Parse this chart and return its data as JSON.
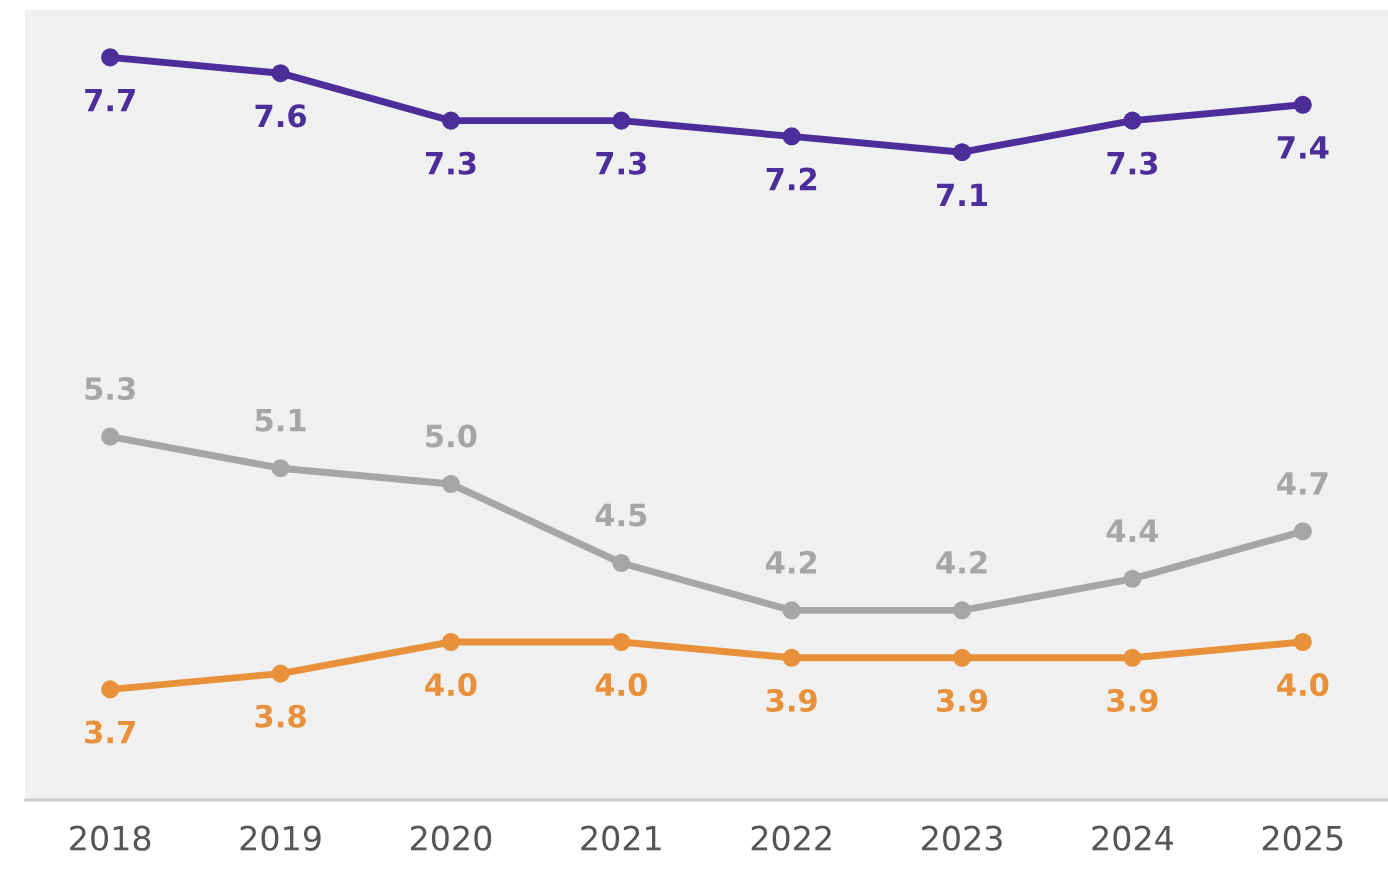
{
  "chart_data": {
    "type": "line",
    "categories": [
      "2018",
      "2019",
      "2020",
      "2021",
      "2022",
      "2023",
      "2024",
      "2025"
    ],
    "series": [
      {
        "color": "#4b2e9a",
        "values": [
          7.7,
          7.6,
          7.3,
          7.3,
          7.2,
          7.1,
          7.3,
          7.4
        ],
        "value_labels": [
          "7.7",
          "7.6",
          "7.3",
          "7.3",
          "7.2",
          "7.1",
          "7.3",
          "7.4"
        ]
      },
      {
        "color": "#a6a6a6",
        "values": [
          5.3,
          5.1,
          5.0,
          4.5,
          4.2,
          4.2,
          4.4,
          4.7
        ],
        "value_labels": [
          "5.3",
          "5.1",
          "5.0",
          "4.5",
          "4.2",
          "4.2",
          "4.4",
          "4.7"
        ]
      },
      {
        "color": "#e8913a",
        "values": [
          3.7,
          3.8,
          4.0,
          4.0,
          3.9,
          3.9,
          3.9,
          4.0
        ],
        "value_labels": [
          "3.7",
          "3.8",
          "4.0",
          "4.0",
          "3.9",
          "3.9",
          "3.9",
          "4.0"
        ]
      }
    ],
    "ylim": [
      3.0,
      8.0
    ],
    "marker": "circle",
    "line_style": "solid",
    "grid": false,
    "legend": false,
    "tick_labels": "x"
  }
}
